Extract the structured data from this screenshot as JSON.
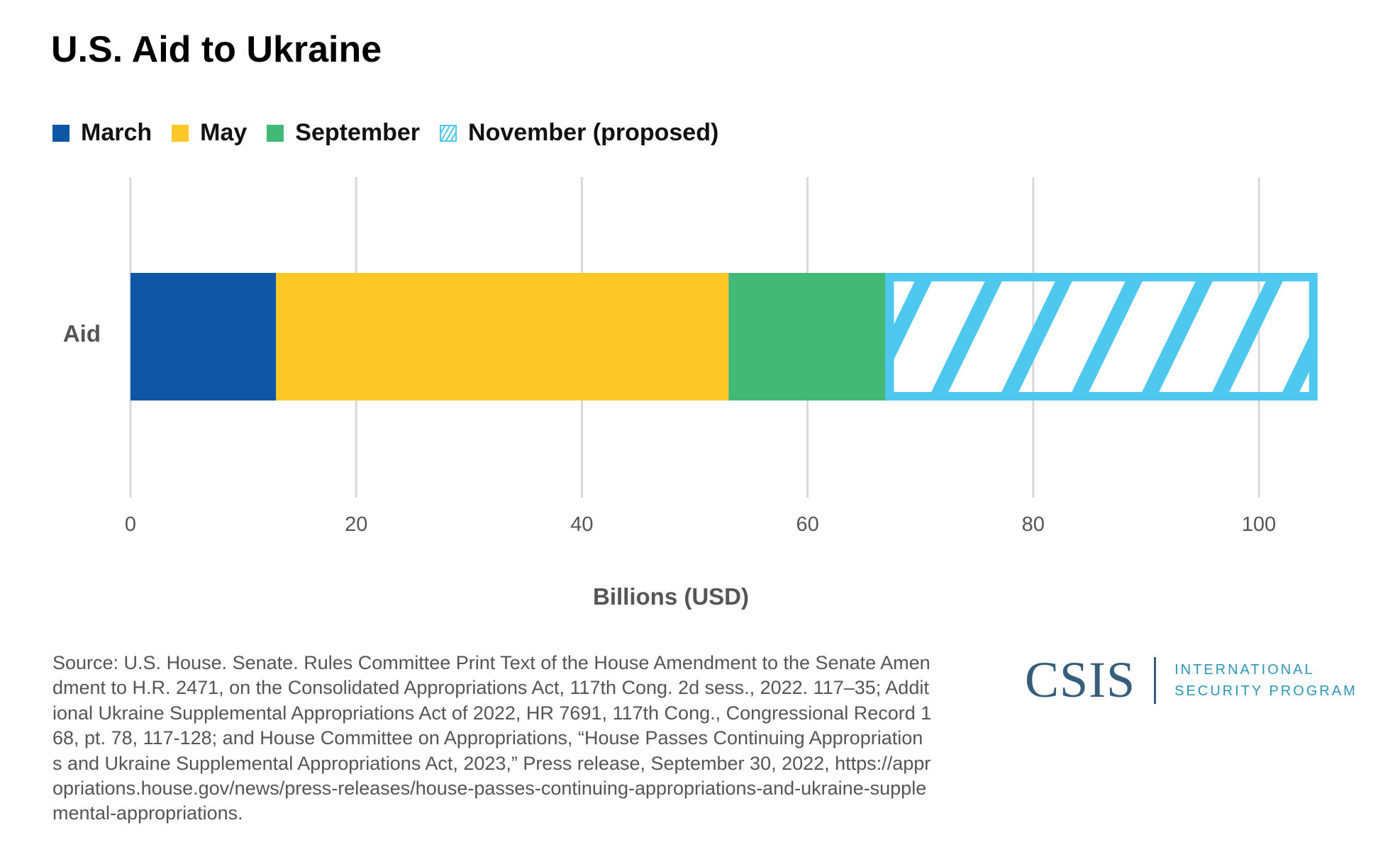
{
  "chart_data": {
    "type": "bar",
    "orientation": "horizontal",
    "stacked": true,
    "title": "U.S. Aid to Ukraine",
    "xlabel": "Billions (USD)",
    "ylabel": "",
    "categories": [
      "Aid"
    ],
    "xlim": [
      0,
      105
    ],
    "xticks": [
      0,
      20,
      40,
      60,
      80,
      100
    ],
    "grid": true,
    "legend_position": "top-left",
    "series": [
      {
        "name": "March",
        "values": [
          12.9
        ],
        "color": "#0f56a5",
        "pattern": "solid"
      },
      {
        "name": "May",
        "values": [
          40.1
        ],
        "color": "#fec828",
        "pattern": "solid"
      },
      {
        "name": "September",
        "values": [
          13.9
        ],
        "color": "#43b977",
        "pattern": "solid"
      },
      {
        "name": "November (proposed)",
        "values": [
          38.3
        ],
        "color": "#4fc8f0",
        "pattern": "hatched"
      }
    ]
  },
  "source": "Source: U.S. House. Senate. Rules Committee Print Text of the House Amendment to the Senate Amendment to H.R. 2471, on the Consolidated Appropriations Act, 117th Cong. 2d sess., 2022. 117–35; Additional Ukraine Supplemental Appropriations Act of 2022, HR 7691, 117th Cong., Congressional Record 168, pt. 78, 117-128; and House Committee on Appropriations, “House Passes Continuing Appropriations and Ukraine Supplemental Appropriations Act, 2023,” Press release, September 30, 2022, https://appropriations.house.gov/news/press-releases/house-passes-continuing-appropriations-and-ukraine-supplemental-appropriations.",
  "logo": {
    "name": "CSIS",
    "subtitle_line1": "INTERNATIONAL",
    "subtitle_line2": "SECURITY PROGRAM"
  }
}
